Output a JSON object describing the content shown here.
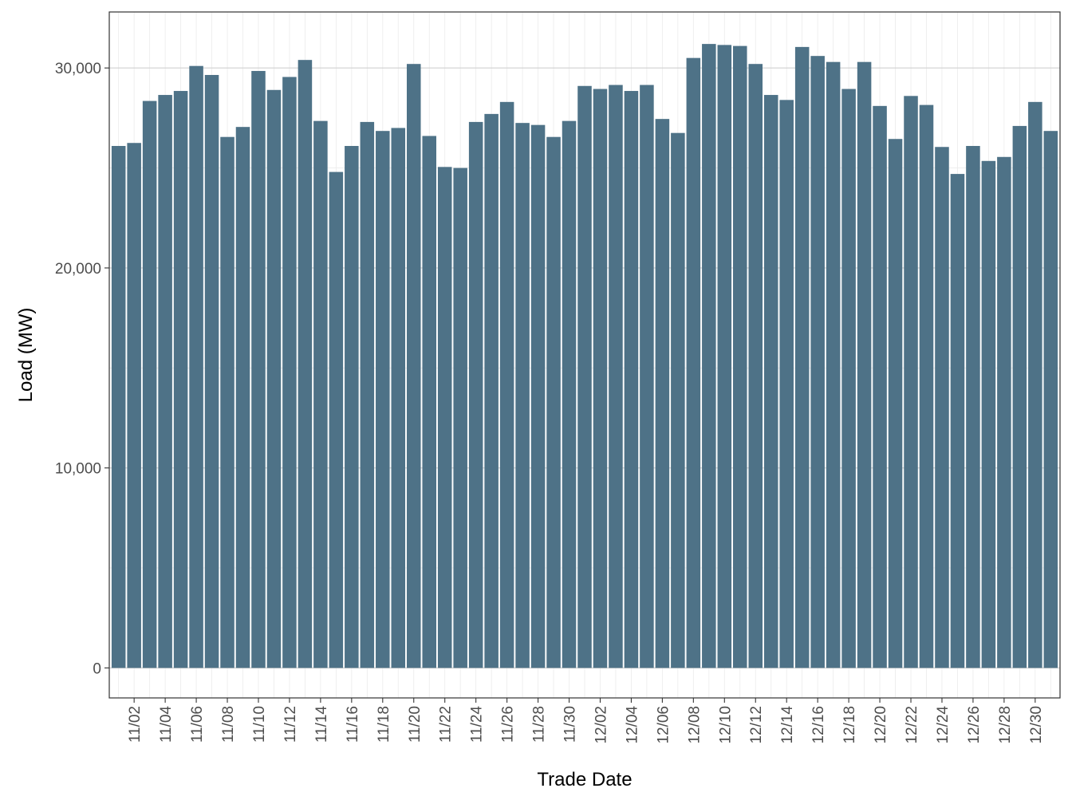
{
  "chart_data": {
    "type": "bar",
    "xlabel": "Trade Date",
    "ylabel": "Load (MW)",
    "ylim": [
      -1500,
      32800
    ],
    "y_ticks": [
      0,
      10000,
      20000,
      30000
    ],
    "y_tick_labels": [
      "0",
      "10,000",
      "20,000",
      "30,000"
    ],
    "x_tick_labels": [
      "11/02",
      "11/04",
      "11/06",
      "11/08",
      "11/10",
      "11/12",
      "11/14",
      "11/16",
      "11/18",
      "11/20",
      "11/22",
      "11/24",
      "11/26",
      "11/28",
      "11/30",
      "12/02",
      "12/04",
      "12/06",
      "12/08",
      "12/10",
      "12/12",
      "12/14",
      "12/16",
      "12/18",
      "12/20",
      "12/22",
      "12/24",
      "12/26",
      "12/28",
      "12/30"
    ],
    "grid": true,
    "bar_color": "#4e7287",
    "categories": [
      "11/01",
      "11/02",
      "11/03",
      "11/04",
      "11/05",
      "11/06",
      "11/07",
      "11/08",
      "11/09",
      "11/10",
      "11/11",
      "11/12",
      "11/13",
      "11/14",
      "11/15",
      "11/16",
      "11/17",
      "11/18",
      "11/19",
      "11/20",
      "11/21",
      "11/22",
      "11/23",
      "11/24",
      "11/25",
      "11/26",
      "11/27",
      "11/28",
      "11/29",
      "11/30",
      "12/01",
      "12/02",
      "12/03",
      "12/04",
      "12/05",
      "12/06",
      "12/07",
      "12/08",
      "12/09",
      "12/10",
      "12/11",
      "12/12",
      "12/13",
      "12/14",
      "12/15",
      "12/16",
      "12/17",
      "12/18",
      "12/19",
      "12/20",
      "12/21",
      "12/22",
      "12/23",
      "12/24",
      "12/25",
      "12/26",
      "12/27",
      "12/28",
      "12/29",
      "12/30",
      "12/31"
    ],
    "values": [
      26100,
      26250,
      28350,
      28650,
      28850,
      30100,
      29650,
      26550,
      27050,
      29850,
      28900,
      29550,
      30400,
      27350,
      24800,
      26100,
      27300,
      26850,
      27000,
      30200,
      26600,
      25050,
      25000,
      27300,
      27700,
      28300,
      27250,
      27150,
      26550,
      27350,
      29100,
      28950,
      29150,
      28850,
      29150,
      27450,
      26750,
      30500,
      31200,
      31150,
      31100,
      30200,
      28650,
      28400,
      31050,
      30600,
      30300,
      28950,
      30300,
      28100,
      26450,
      28600,
      28150,
      26050,
      24700,
      26100,
      25350,
      25550,
      27100,
      28300,
      26850
    ]
  }
}
